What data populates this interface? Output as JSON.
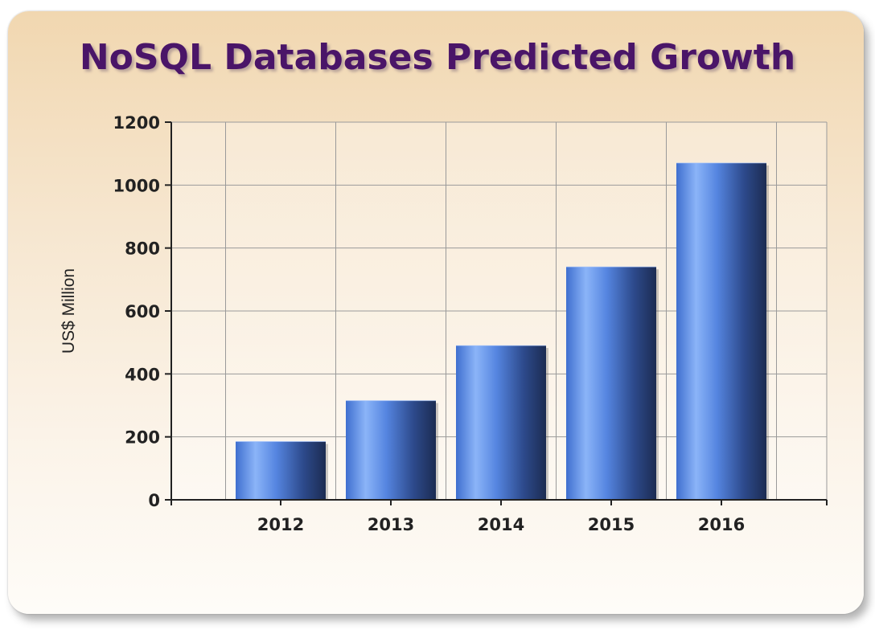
{
  "chart_data": {
    "type": "bar",
    "title": "NoSQL Databases Predicted Growth",
    "xlabel": "",
    "ylabel": "US$ Million",
    "categories": [
      "2012",
      "2013",
      "2014",
      "2015",
      "2016"
    ],
    "values": [
      185,
      315,
      490,
      740,
      1070
    ],
    "ylim": [
      0,
      1200
    ],
    "yticks": [
      "0",
      "200",
      "400",
      "600",
      "800",
      "1000",
      "1200"
    ],
    "grid": true,
    "legend": "none",
    "colors": {
      "bar_light": "#8bb4f8",
      "bar_mid": "#4f7fd6",
      "bar_dark": "#1c2c52",
      "title": "#4a1568",
      "grid": "#9a9a9a"
    }
  }
}
